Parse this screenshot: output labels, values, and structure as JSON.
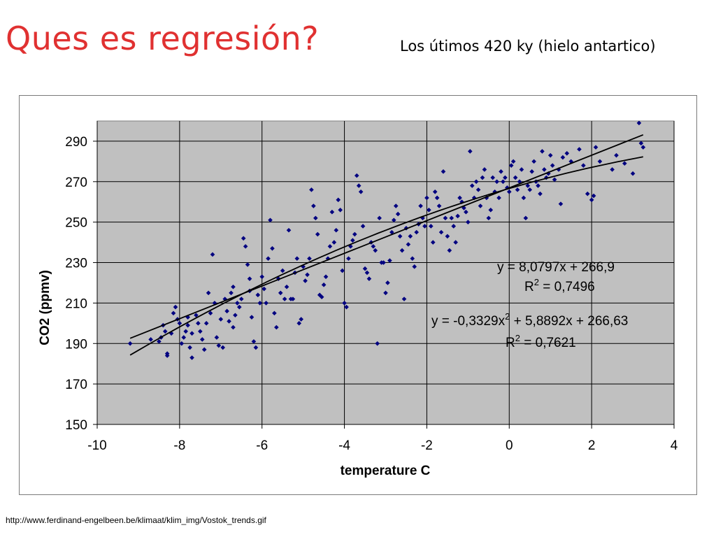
{
  "slide": {
    "title": "Ques es regresión?",
    "subtitle": "Los útimos 420 ky (hielo antartico)",
    "source": "http://www.ferdinand-engelbeen.be/klimaat/klim_img/Vostok_trends.gif"
  },
  "colors": {
    "plot_background": "#c0c0c0",
    "points": "#000080",
    "trendlines": "#000000",
    "title": "#e03131"
  },
  "chart_data": {
    "type": "scatter",
    "title": "",
    "xlabel": "temperature C",
    "ylabel": "CO2 (ppmv)",
    "xlim": [
      -10,
      4
    ],
    "ylim": [
      150,
      300
    ],
    "xticks": [
      -10,
      -8,
      -6,
      -4,
      -2,
      0,
      2,
      4
    ],
    "yticks": [
      150,
      170,
      190,
      210,
      230,
      250,
      270,
      290
    ],
    "grid": "vertical-and-horizontal",
    "legend": "none",
    "series": [
      {
        "points": [
          [
            -9.2,
            190
          ],
          [
            -8.7,
            192
          ],
          [
            -8.5,
            191
          ],
          [
            -8.45,
            193
          ],
          [
            -8.4,
            199
          ],
          [
            -8.35,
            196
          ],
          [
            -8.3,
            184
          ],
          [
            -8.3,
            185
          ],
          [
            -8.2,
            195
          ],
          [
            -8.15,
            205
          ],
          [
            -8.1,
            208
          ],
          [
            -8.05,
            202
          ],
          [
            -8.0,
            200
          ],
          [
            -7.95,
            190
          ],
          [
            -7.9,
            193
          ],
          [
            -7.85,
            196
          ],
          [
            -7.8,
            199
          ],
          [
            -7.8,
            203
          ],
          [
            -7.75,
            188
          ],
          [
            -7.7,
            195
          ],
          [
            -7.7,
            183
          ],
          [
            -7.6,
            204
          ],
          [
            -7.55,
            200
          ],
          [
            -7.5,
            196
          ],
          [
            -7.45,
            192
          ],
          [
            -7.4,
            187
          ],
          [
            -7.35,
            200
          ],
          [
            -7.3,
            215
          ],
          [
            -7.25,
            205
          ],
          [
            -7.2,
            234
          ],
          [
            -7.15,
            210
          ],
          [
            -7.1,
            193
          ],
          [
            -7.05,
            189
          ],
          [
            -7.0,
            202
          ],
          [
            -6.95,
            188
          ],
          [
            -6.9,
            212
          ],
          [
            -6.85,
            206
          ],
          [
            -6.8,
            201
          ],
          [
            -6.75,
            215
          ],
          [
            -6.7,
            198
          ],
          [
            -6.7,
            218
          ],
          [
            -6.65,
            204
          ],
          [
            -6.6,
            210
          ],
          [
            -6.55,
            208
          ],
          [
            -6.5,
            212
          ],
          [
            -6.45,
            242
          ],
          [
            -6.4,
            238
          ],
          [
            -6.35,
            229
          ],
          [
            -6.3,
            216
          ],
          [
            -6.3,
            222
          ],
          [
            -6.25,
            203
          ],
          [
            -6.2,
            191
          ],
          [
            -6.15,
            188
          ],
          [
            -6.1,
            214
          ],
          [
            -6.05,
            210
          ],
          [
            -6.0,
            223
          ],
          [
            -5.95,
            217
          ],
          [
            -5.9,
            210
          ],
          [
            -5.85,
            232
          ],
          [
            -5.8,
            251
          ],
          [
            -5.75,
            237
          ],
          [
            -5.7,
            205
          ],
          [
            -5.65,
            198
          ],
          [
            -5.6,
            222
          ],
          [
            -5.55,
            215
          ],
          [
            -5.5,
            226
          ],
          [
            -5.45,
            212
          ],
          [
            -5.4,
            218
          ],
          [
            -5.35,
            246
          ],
          [
            -5.3,
            212
          ],
          [
            -5.25,
            212
          ],
          [
            -5.2,
            225
          ],
          [
            -5.15,
            232
          ],
          [
            -5.1,
            200
          ],
          [
            -5.05,
            202
          ],
          [
            -5.0,
            228
          ],
          [
            -4.95,
            221
          ],
          [
            -4.9,
            224
          ],
          [
            -4.85,
            232
          ],
          [
            -4.8,
            266
          ],
          [
            -4.75,
            258
          ],
          [
            -4.7,
            252
          ],
          [
            -4.65,
            244
          ],
          [
            -4.6,
            214
          ],
          [
            -4.55,
            213
          ],
          [
            -4.5,
            219
          ],
          [
            -4.45,
            223
          ],
          [
            -4.4,
            232
          ],
          [
            -4.35,
            238
          ],
          [
            -4.3,
            255
          ],
          [
            -4.25,
            240
          ],
          [
            -4.2,
            246
          ],
          [
            -4.15,
            261
          ],
          [
            -4.1,
            256
          ],
          [
            -4.05,
            226
          ],
          [
            -4.0,
            210
          ],
          [
            -3.95,
            208
          ],
          [
            -3.9,
            232
          ],
          [
            -3.85,
            238
          ],
          [
            -3.8,
            241
          ],
          [
            -3.75,
            244
          ],
          [
            -3.7,
            273
          ],
          [
            -3.65,
            268
          ],
          [
            -3.6,
            265
          ],
          [
            -3.55,
            248
          ],
          [
            -3.5,
            227
          ],
          [
            -3.45,
            225
          ],
          [
            -3.4,
            222
          ],
          [
            -3.35,
            240
          ],
          [
            -3.3,
            238
          ],
          [
            -3.25,
            236
          ],
          [
            -3.2,
            190
          ],
          [
            -3.15,
            252
          ],
          [
            -3.1,
            230
          ],
          [
            -3.05,
            230
          ],
          [
            -3.0,
            215
          ],
          [
            -2.95,
            220
          ],
          [
            -2.9,
            231
          ],
          [
            -2.85,
            245
          ],
          [
            -2.8,
            251
          ],
          [
            -2.75,
            258
          ],
          [
            -2.7,
            254
          ],
          [
            -2.65,
            243
          ],
          [
            -2.6,
            236
          ],
          [
            -2.55,
            212
          ],
          [
            -2.5,
            247
          ],
          [
            -2.45,
            239
          ],
          [
            -2.4,
            243
          ],
          [
            -2.35,
            232
          ],
          [
            -2.3,
            228
          ],
          [
            -2.25,
            245
          ],
          [
            -2.2,
            249
          ],
          [
            -2.15,
            258
          ],
          [
            -2.1,
            252
          ],
          [
            -2.05,
            248
          ],
          [
            -2.0,
            262
          ],
          [
            -1.95,
            256
          ],
          [
            -1.9,
            248
          ],
          [
            -1.85,
            240
          ],
          [
            -1.8,
            265
          ],
          [
            -1.75,
            262
          ],
          [
            -1.7,
            258
          ],
          [
            -1.65,
            245
          ],
          [
            -1.6,
            275
          ],
          [
            -1.55,
            252
          ],
          [
            -1.5,
            243
          ],
          [
            -1.45,
            236
          ],
          [
            -1.4,
            252
          ],
          [
            -1.35,
            248
          ],
          [
            -1.3,
            240
          ],
          [
            -1.25,
            253
          ],
          [
            -1.2,
            262
          ],
          [
            -1.15,
            260
          ],
          [
            -1.1,
            257
          ],
          [
            -1.05,
            255
          ],
          [
            -1.0,
            250
          ],
          [
            -0.95,
            285
          ],
          [
            -0.9,
            268
          ],
          [
            -0.85,
            262
          ],
          [
            -0.8,
            270
          ],
          [
            -0.75,
            266
          ],
          [
            -0.7,
            258
          ],
          [
            -0.65,
            272
          ],
          [
            -0.6,
            276
          ],
          [
            -0.55,
            262
          ],
          [
            -0.5,
            252
          ],
          [
            -0.45,
            256
          ],
          [
            -0.4,
            272
          ],
          [
            -0.35,
            265
          ],
          [
            -0.3,
            270
          ],
          [
            -0.25,
            262
          ],
          [
            -0.2,
            275
          ],
          [
            -0.15,
            270
          ],
          [
            -0.1,
            272
          ],
          [
            -0.05,
            267
          ],
          [
            0.0,
            265
          ],
          [
            0.05,
            278
          ],
          [
            0.1,
            280
          ],
          [
            0.15,
            272
          ],
          [
            0.2,
            266
          ],
          [
            0.25,
            270
          ],
          [
            0.3,
            276
          ],
          [
            0.35,
            262
          ],
          [
            0.4,
            252
          ],
          [
            0.45,
            268
          ],
          [
            0.5,
            266
          ],
          [
            0.55,
            275
          ],
          [
            0.6,
            280
          ],
          [
            0.65,
            270
          ],
          [
            0.7,
            268
          ],
          [
            0.75,
            264
          ],
          [
            0.8,
            285
          ],
          [
            0.85,
            276
          ],
          [
            0.9,
            272
          ],
          [
            0.95,
            274
          ],
          [
            1.0,
            283
          ],
          [
            1.05,
            278
          ],
          [
            1.1,
            271
          ],
          [
            1.2,
            276
          ],
          [
            1.25,
            259
          ],
          [
            1.3,
            282
          ],
          [
            1.4,
            284
          ],
          [
            1.5,
            280
          ],
          [
            1.7,
            286
          ],
          [
            1.8,
            278
          ],
          [
            1.9,
            264
          ],
          [
            2.0,
            261
          ],
          [
            2.05,
            263
          ],
          [
            2.1,
            287
          ],
          [
            2.2,
            280
          ],
          [
            2.5,
            276
          ],
          [
            2.6,
            283
          ],
          [
            2.8,
            279
          ],
          [
            3.0,
            274
          ],
          [
            3.15,
            299
          ],
          [
            3.2,
            289
          ],
          [
            3.25,
            287
          ]
        ]
      }
    ],
    "trendlines": [
      {
        "type": "linear",
        "coefficients": {
          "a": 8.0797,
          "b": 266.9
        },
        "equation": "y = 8,0797x + 266,9",
        "r2_prefix": "R",
        "r2_exp": "2",
        "r2_value": " = 0,7496"
      },
      {
        "type": "polynomial",
        "coefficients": {
          "a2": -0.3329,
          "a1": 5.8892,
          "a0": 266.63
        },
        "equation_part1": "y = -0,3329x",
        "equation_exp": "2",
        "equation_part2": " + 5,8892x + 266,63",
        "r2_prefix": "R",
        "r2_exp": "2",
        "r2_value": " = 0,7621"
      }
    ]
  }
}
